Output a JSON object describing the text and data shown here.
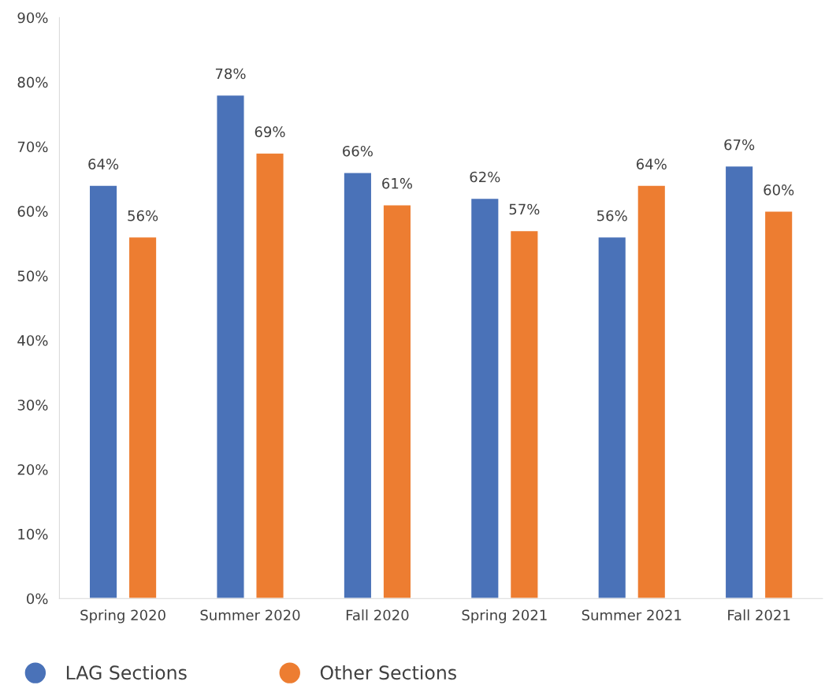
{
  "chart_data": {
    "type": "bar",
    "categories": [
      "Spring 2020",
      "Summer 2020",
      "Fall 2020",
      "Spring 2021",
      "Summer 2021",
      "Fall 2021"
    ],
    "series": [
      {
        "name": "LAG Sections",
        "color": "#4a72b8",
        "values": [
          64,
          78,
          66,
          62,
          56,
          67
        ],
        "value_labels": [
          "64%",
          "78%",
          "66%",
          "62%",
          "56%",
          "67%"
        ]
      },
      {
        "name": "Other Sections",
        "color": "#ed7d31",
        "values": [
          56,
          69,
          61,
          57,
          64,
          60
        ],
        "value_labels": [
          "56%",
          "69%",
          "61%",
          "57%",
          "64%",
          "60%"
        ]
      }
    ],
    "ylim": [
      0,
      90
    ],
    "yticks": [
      {
        "value": 0,
        "label": "0%"
      },
      {
        "value": 10,
        "label": "10%"
      },
      {
        "value": 20,
        "label": "20%"
      },
      {
        "value": 30,
        "label": "30%"
      },
      {
        "value": 40,
        "label": "40%"
      },
      {
        "value": 50,
        "label": "50%"
      },
      {
        "value": 60,
        "label": "60%"
      },
      {
        "value": 70,
        "label": "70%"
      },
      {
        "value": 80,
        "label": "80%"
      },
      {
        "value": 90,
        "label": "90%"
      }
    ],
    "grid": false,
    "legend": "bottom left"
  }
}
